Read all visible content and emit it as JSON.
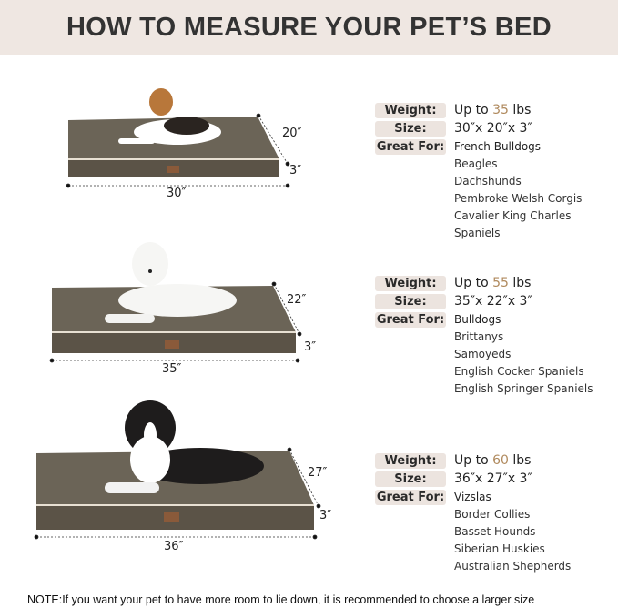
{
  "title": "HOW TO MEASURE YOUR PET’S BED",
  "labels": {
    "weight": "Weight:",
    "size": "Size:",
    "great_for": "Great For:"
  },
  "colors": {
    "bed_top": "#6b6457",
    "bed_side": "#5b5347",
    "piping": "#e8e0d3",
    "header_bg": "#efe7e2",
    "accent": "#b08a5e"
  },
  "beds": [
    {
      "weight_prefix": "Up to ",
      "weight": "35",
      "weight_unit": " lbs",
      "size": "30″x 20″x 3″",
      "length": "30″",
      "width": "20″",
      "height": "3″",
      "breeds": [
        "French Bulldogs",
        "Beagles",
        "Dachshunds",
        "Pembroke Welsh Corgis",
        "Cavalier King Charles Spaniels"
      ]
    },
    {
      "weight_prefix": "Up to ",
      "weight": "55",
      "weight_unit": " lbs",
      "size": "35″x 22″x 3″",
      "length": "35″",
      "width": "22″",
      "height": "3″",
      "breeds": [
        "Bulldogs",
        "Brittanys",
        "Samoyeds",
        "English Cocker Spaniels",
        "English Springer Spaniels"
      ]
    },
    {
      "weight_prefix": "Up to ",
      "weight": "60",
      "weight_unit": " lbs",
      "size": "36″x 27″x 3″",
      "length": "36″",
      "width": "27″",
      "height": "3″",
      "breeds": [
        "Vizslas",
        "Border Collies",
        "Basset Hounds",
        "Siberian Huskies",
        "Australian Shepherds"
      ]
    }
  ],
  "note": "NOTE:If you want your pet to have more room to lie down, it is recommended to choose a larger size"
}
